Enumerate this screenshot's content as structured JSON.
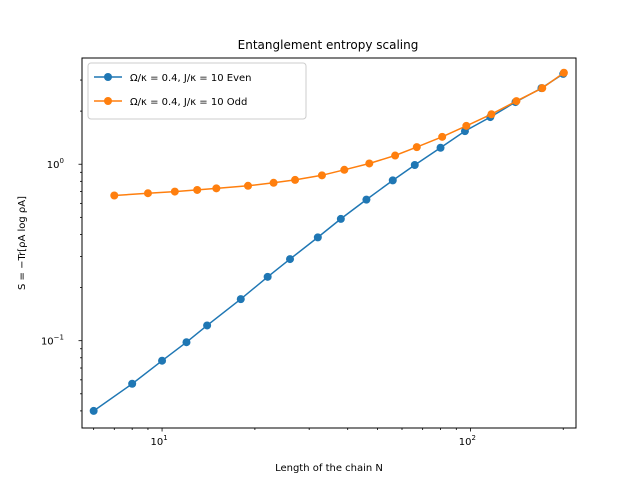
{
  "chart_data": {
    "type": "line",
    "title": "Entanglement entropy scaling",
    "xlabel": "Length of the chain N",
    "ylabel": "S = −Tr[ρA log ρA]",
    "xscale": "log",
    "yscale": "log",
    "xlim": [
      5.5,
      220
    ],
    "ylim": [
      0.032,
      4.0
    ],
    "x_ticks": [
      {
        "value": 10,
        "label": "10",
        "exp": "1"
      },
      {
        "value": 100,
        "label": "10",
        "exp": "2"
      }
    ],
    "y_ticks": [
      {
        "value": 0.1,
        "label": "10",
        "exp": "−1"
      },
      {
        "value": 1,
        "label": "10",
        "exp": "0"
      }
    ],
    "grid": false,
    "legend_position": "top-left",
    "series": [
      {
        "name": "Ω/κ = 0.4, J/κ = 10 Even",
        "color": "#1f77b4",
        "x": [
          6,
          8,
          10,
          12,
          14,
          18,
          22,
          26,
          32,
          38,
          46,
          56,
          66,
          80,
          96,
          116,
          140,
          170,
          200
        ],
        "y": [
          0.04,
          0.057,
          0.077,
          0.098,
          0.122,
          0.172,
          0.23,
          0.29,
          0.385,
          0.49,
          0.63,
          0.81,
          0.99,
          1.24,
          1.54,
          1.85,
          2.25,
          2.7,
          3.25
        ]
      },
      {
        "name": "Ω/κ = 0.4, J/κ = 10 Odd",
        "color": "#ff7f0e",
        "x": [
          7,
          9,
          11,
          13,
          15,
          19,
          23,
          27,
          33,
          39,
          47,
          57,
          67,
          81,
          97,
          117,
          141,
          171,
          201
        ],
        "y": [
          0.665,
          0.685,
          0.7,
          0.715,
          0.73,
          0.755,
          0.785,
          0.815,
          0.865,
          0.93,
          1.01,
          1.12,
          1.25,
          1.43,
          1.65,
          1.92,
          2.28,
          2.7,
          3.3
        ]
      }
    ]
  }
}
